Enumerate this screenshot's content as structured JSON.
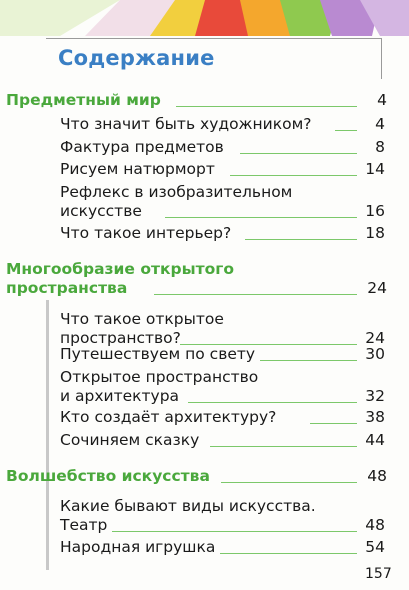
{
  "title": "Содержание",
  "page_number": "157",
  "toc": [
    {
      "id": "s1",
      "type": "section",
      "lines": [
        "Предметный мир"
      ],
      "page": "4"
    },
    {
      "id": "i1",
      "type": "item",
      "lines": [
        "Что значит быть художником?"
      ],
      "page": "4"
    },
    {
      "id": "i2",
      "type": "item",
      "lines": [
        "Фактура предметов"
      ],
      "page": "8"
    },
    {
      "id": "i3",
      "type": "item",
      "lines": [
        "Рисуем натюрморт"
      ],
      "page": "14"
    },
    {
      "id": "i4",
      "type": "item",
      "lines": [
        "Рефлекс в изобразительном",
        "искусстве"
      ],
      "page": "16"
    },
    {
      "id": "i5",
      "type": "item",
      "lines": [
        "Что такое интерьер?"
      ],
      "page": "18"
    },
    {
      "id": "s2",
      "type": "section",
      "lines": [
        "Многообразие открытого",
        "пространства"
      ],
      "page": "24"
    },
    {
      "id": "i6",
      "type": "item",
      "lines": [
        "Что такое открытое",
        "пространство?"
      ],
      "page": "24"
    },
    {
      "id": "i7",
      "type": "item",
      "lines": [
        "Путешествуем по свету"
      ],
      "page": "30"
    },
    {
      "id": "i8",
      "type": "item",
      "lines": [
        "Открытое пространство",
        "и архитектура"
      ],
      "page": "32"
    },
    {
      "id": "i9",
      "type": "item",
      "lines": [
        "Кто создаёт архитектуру?"
      ],
      "page": "38"
    },
    {
      "id": "i10",
      "type": "item",
      "lines": [
        "Сочиняем сказку"
      ],
      "page": "44"
    },
    {
      "id": "s3",
      "type": "section",
      "lines": [
        "Волшебство искусства"
      ],
      "page": "48"
    },
    {
      "id": "i11",
      "type": "item",
      "lines": [
        "Какие бывают виды искусства.",
        "Театр"
      ],
      "page": "48"
    },
    {
      "id": "i12",
      "type": "item",
      "lines": [
        "Народная игрушка"
      ],
      "page": "54"
    }
  ]
}
